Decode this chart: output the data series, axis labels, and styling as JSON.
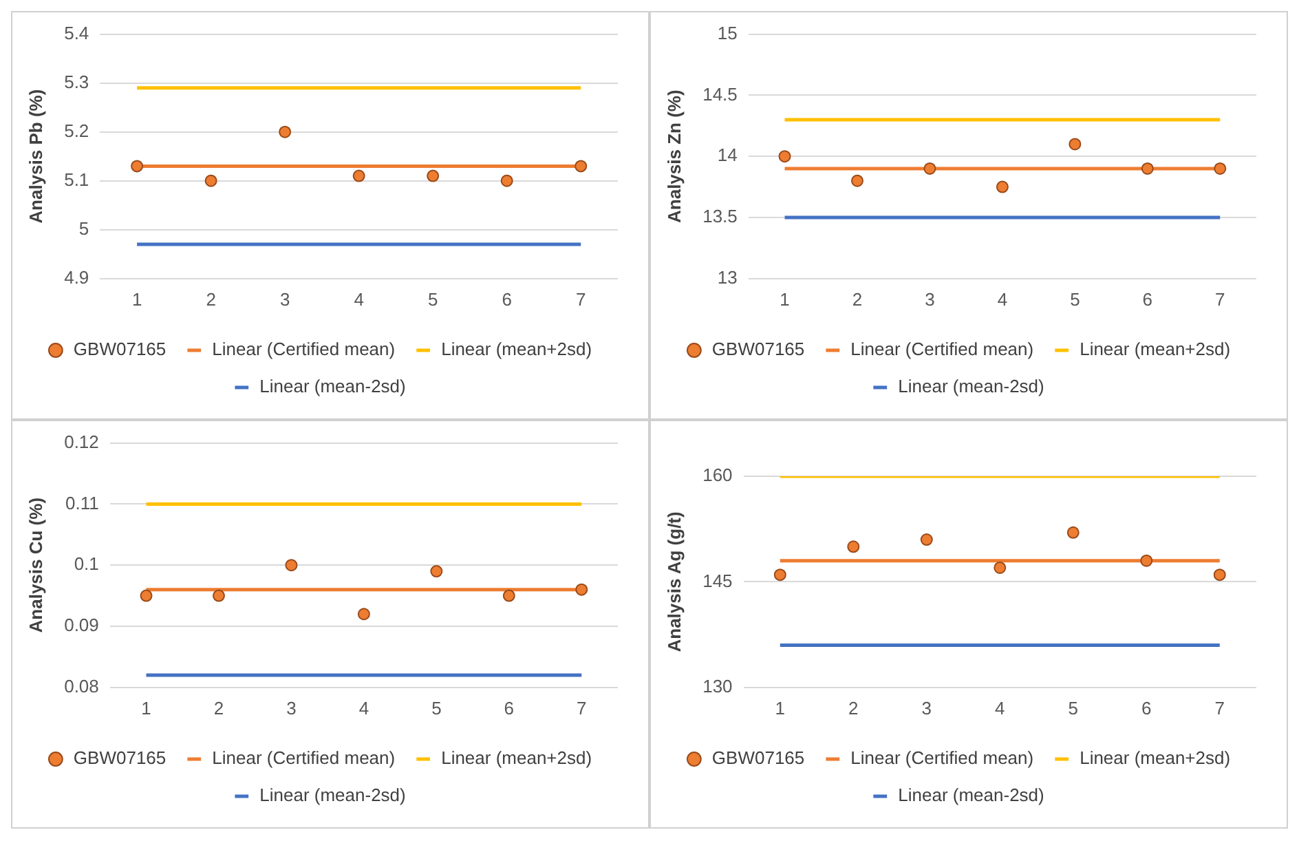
{
  "chart_data": [
    {
      "type": "line",
      "ylabel": "Analysis Pb (%)",
      "categories": [
        "1",
        "2",
        "3",
        "4",
        "5",
        "6",
        "7"
      ],
      "ylim": [
        4.9,
        5.4
      ],
      "yticks": [
        4.9,
        5,
        5.1,
        5.2,
        5.3,
        5.4
      ],
      "grid": "y",
      "legend": "bottom",
      "series": [
        {
          "name": "GBW07165",
          "type": "scatter",
          "marker": "circle",
          "color": "#ed7d31",
          "values": [
            5.13,
            5.1,
            5.2,
            5.11,
            5.11,
            5.1,
            5.13
          ]
        },
        {
          "name": "Linear (Certified mean)",
          "type": "line",
          "marker": "none",
          "color": "#ed7d31",
          "values": [
            5.13,
            5.13,
            5.13,
            5.13,
            5.13,
            5.13,
            5.13
          ]
        },
        {
          "name": "Linear (mean+2sd)",
          "type": "line",
          "marker": "none",
          "color": "#ffc000",
          "values": [
            5.29,
            5.29,
            5.29,
            5.29,
            5.29,
            5.29,
            5.29
          ]
        },
        {
          "name": "Linear (mean-2sd)",
          "type": "line",
          "marker": "none",
          "color": "#4472c4",
          "values": [
            4.97,
            4.97,
            4.97,
            4.97,
            4.97,
            4.97,
            4.97
          ]
        }
      ]
    },
    {
      "type": "line",
      "ylabel": "Analysis Zn (%)",
      "categories": [
        "1",
        "2",
        "3",
        "4",
        "5",
        "6",
        "7"
      ],
      "ylim": [
        13,
        15
      ],
      "yticks": [
        13,
        13.5,
        14,
        14.5,
        15
      ],
      "grid": "y",
      "legend": "bottom",
      "series": [
        {
          "name": "GBW07165",
          "type": "scatter",
          "marker": "circle",
          "color": "#ed7d31",
          "values": [
            14,
            13.8,
            13.9,
            13.75,
            14.1,
            13.9,
            13.9
          ]
        },
        {
          "name": "Linear (Certified mean)",
          "type": "line",
          "marker": "none",
          "color": "#ed7d31",
          "values": [
            13.9,
            13.9,
            13.9,
            13.9,
            13.9,
            13.9,
            13.9
          ]
        },
        {
          "name": "Linear (mean+2sd)",
          "type": "line",
          "marker": "none",
          "color": "#ffc000",
          "values": [
            14.3,
            14.3,
            14.3,
            14.3,
            14.3,
            14.3,
            14.3
          ]
        },
        {
          "name": "Linear (mean-2sd)",
          "type": "line",
          "marker": "none",
          "color": "#4472c4",
          "values": [
            13.5,
            13.5,
            13.5,
            13.5,
            13.5,
            13.5,
            13.5
          ]
        }
      ]
    },
    {
      "type": "line",
      "ylabel": "Analysis Cu (%)",
      "categories": [
        "1",
        "2",
        "3",
        "4",
        "5",
        "6",
        "7"
      ],
      "ylim": [
        0.08,
        0.12
      ],
      "yticks": [
        0.08,
        0.09,
        0.1,
        0.11,
        0.12
      ],
      "grid": "y",
      "legend": "bottom",
      "series": [
        {
          "name": "GBW07165",
          "type": "scatter",
          "marker": "circle",
          "color": "#ed7d31",
          "values": [
            0.095,
            0.095,
            0.1,
            0.092,
            0.099,
            0.095,
            0.096
          ]
        },
        {
          "name": "Linear (Certified mean)",
          "type": "line",
          "marker": "none",
          "color": "#ed7d31",
          "values": [
            0.096,
            0.096,
            0.096,
            0.096,
            0.096,
            0.096,
            0.096
          ]
        },
        {
          "name": "Linear (mean+2sd)",
          "type": "line",
          "marker": "none",
          "color": "#ffc000",
          "values": [
            0.11,
            0.11,
            0.11,
            0.11,
            0.11,
            0.11,
            0.11
          ]
        },
        {
          "name": "Linear (mean-2sd)",
          "type": "line",
          "marker": "none",
          "color": "#4472c4",
          "values": [
            0.082,
            0.082,
            0.082,
            0.082,
            0.082,
            0.082,
            0.082
          ]
        }
      ]
    },
    {
      "type": "line",
      "ylabel": "Analysis Ag (g/t)",
      "categories": [
        "1",
        "2",
        "3",
        "4",
        "5",
        "6",
        "7"
      ],
      "ylim": [
        130,
        160
      ],
      "yticks": [
        130,
        145,
        160
      ],
      "grid": "y",
      "legend": "bottom",
      "series": [
        {
          "name": "GBW07165",
          "type": "scatter",
          "marker": "circle",
          "color": "#ed7d31",
          "values": [
            146,
            150,
            151,
            147,
            152,
            148,
            146
          ]
        },
        {
          "name": "Linear (Certified mean)",
          "type": "line",
          "marker": "none",
          "color": "#ed7d31",
          "values": [
            148,
            148,
            148,
            148,
            148,
            148,
            148
          ]
        },
        {
          "name": "Linear (mean+2sd)",
          "type": "line",
          "marker": "none",
          "color": "#ffc000",
          "values": [
            160,
            160,
            160,
            160,
            160,
            160,
            160
          ]
        },
        {
          "name": "Linear (mean-2sd)",
          "type": "line",
          "marker": "none",
          "color": "#4472c4",
          "values": [
            136,
            136,
            136,
            136,
            136,
            136,
            136
          ]
        }
      ]
    }
  ]
}
